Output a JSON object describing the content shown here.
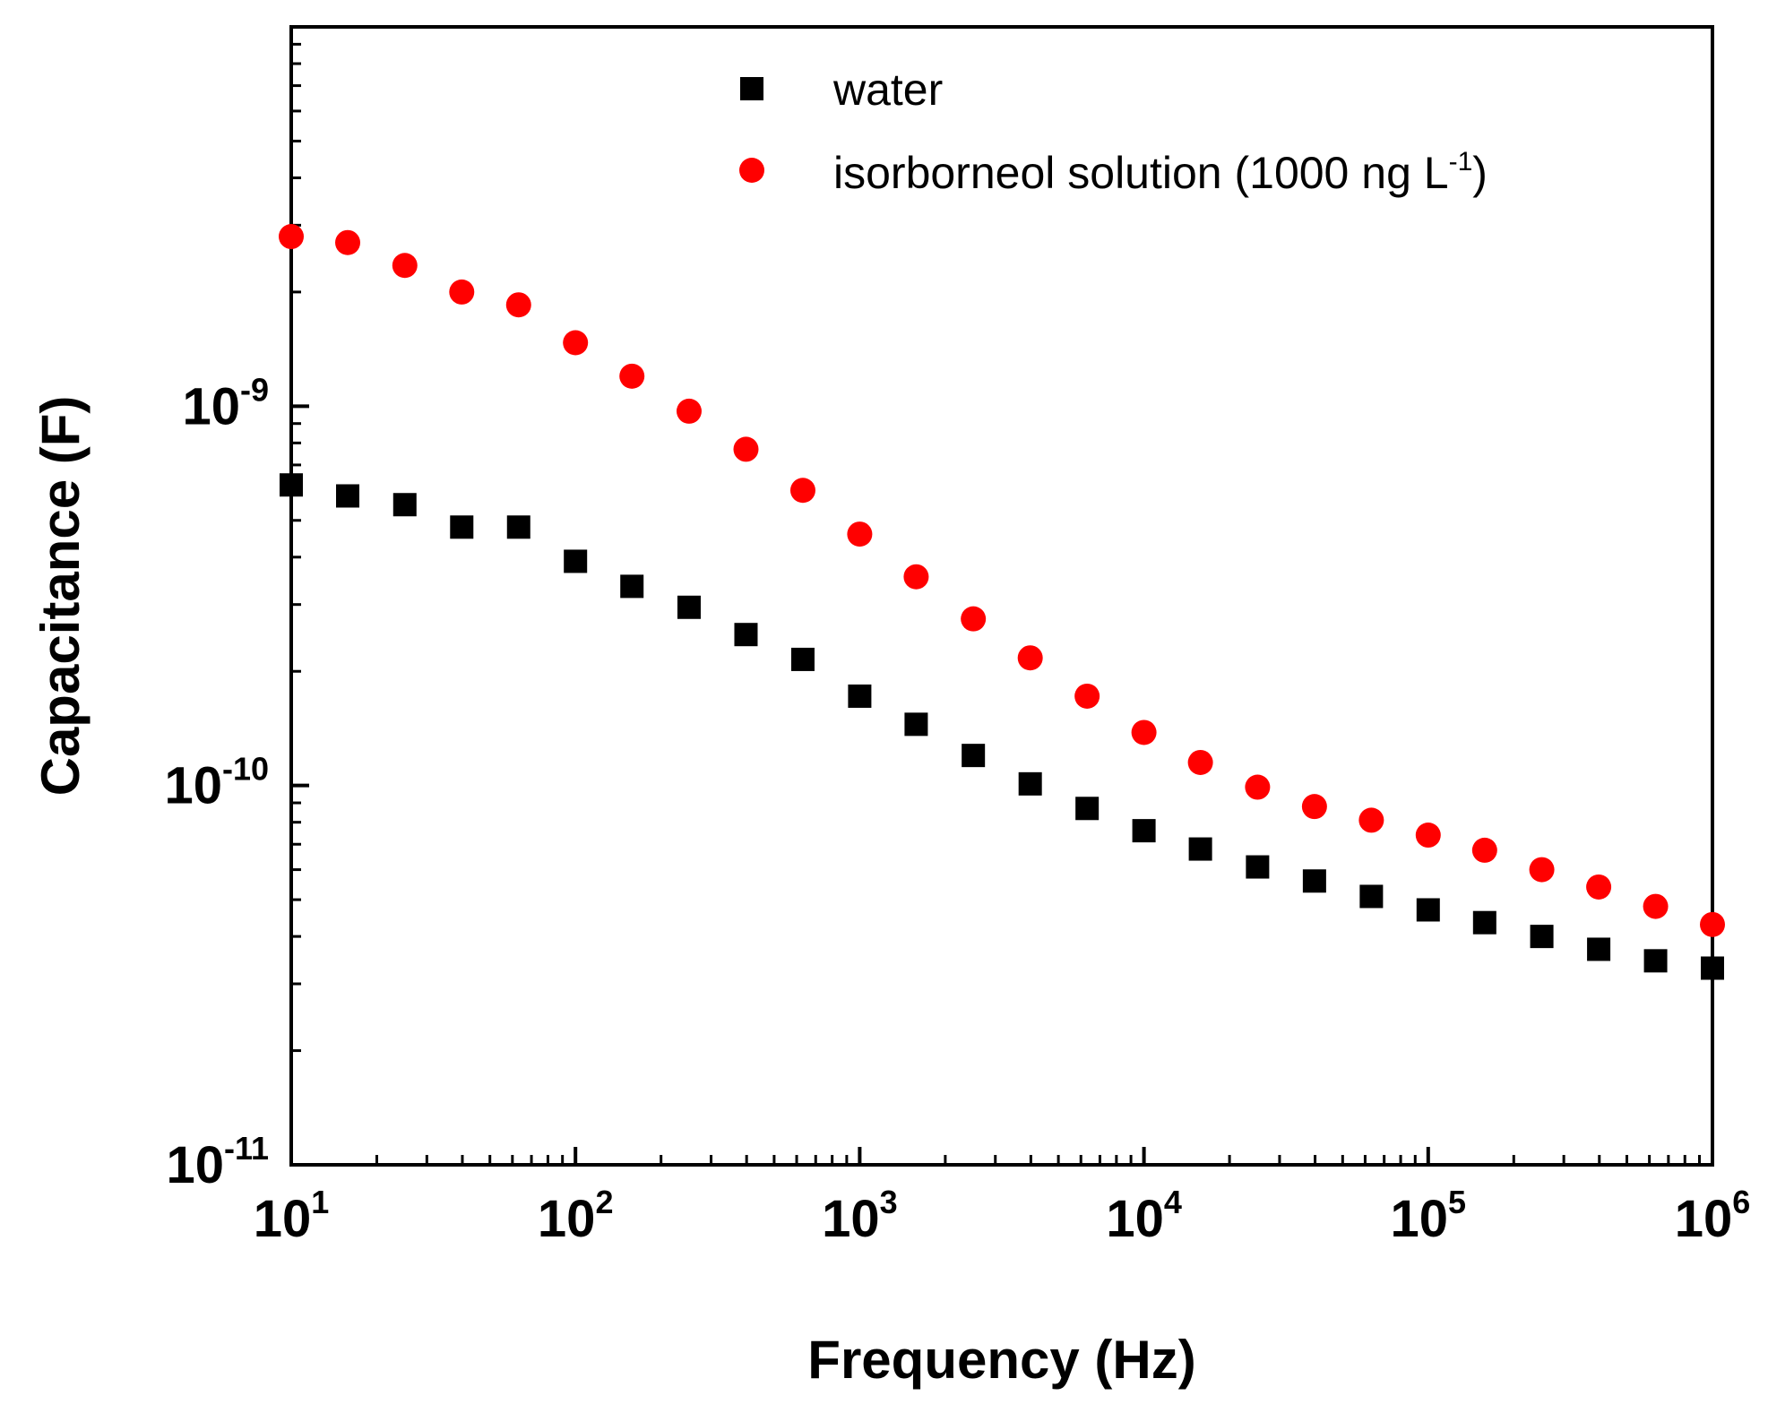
{
  "chart_data": {
    "type": "scatter",
    "xlabel": "Frequency (Hz)",
    "ylabel": "Capacitance (F)",
    "x_scale": "log",
    "y_scale": "log",
    "xlim": [
      10,
      1000000
    ],
    "ylim": [
      1e-11,
      1e-08
    ],
    "grid": false,
    "legend_position": "top-right",
    "x_ticks": [
      {
        "base": "10",
        "exp": "1",
        "value": 10
      },
      {
        "base": "10",
        "exp": "2",
        "value": 100
      },
      {
        "base": "10",
        "exp": "3",
        "value": 1000
      },
      {
        "base": "10",
        "exp": "4",
        "value": 10000
      },
      {
        "base": "10",
        "exp": "5",
        "value": 100000
      },
      {
        "base": "10",
        "exp": "6",
        "value": 1000000
      }
    ],
    "y_ticks": [
      {
        "base": "10",
        "exp": "-11",
        "value": 1e-11
      },
      {
        "base": "10",
        "exp": "-10",
        "value": 1e-10
      },
      {
        "base": "10",
        "exp": "-9",
        "value": 1e-09
      }
    ],
    "series": [
      {
        "name": "water",
        "marker": "square",
        "color": "#000000",
        "x": [
          10,
          15.8,
          25.1,
          39.8,
          63.1,
          100,
          158,
          251,
          398,
          631,
          1000,
          1580,
          2510,
          3980,
          6310,
          10000,
          15800,
          25100,
          39800,
          63100,
          100000,
          158000,
          251000,
          398000,
          631000,
          1000000
        ],
        "y": [
          6.2e-10,
          5.8e-10,
          5.5e-10,
          4.8e-10,
          4.8e-10,
          3.9e-10,
          3.35e-10,
          2.95e-10,
          2.5e-10,
          2.15e-10,
          1.72e-10,
          1.45e-10,
          1.2e-10,
          1.01e-10,
          8.7e-11,
          7.6e-11,
          6.8e-11,
          6.1e-11,
          5.6e-11,
          5.1e-11,
          4.7e-11,
          4.35e-11,
          4e-11,
          3.7e-11,
          3.45e-11,
          3.3e-11
        ]
      },
      {
        "name": "isorborneol solution (1000 ng L",
        "name_sup": "-1",
        "name_suffix": ")",
        "marker": "circle",
        "color": "#ff0000",
        "x": [
          10,
          15.8,
          25.1,
          39.8,
          63.1,
          100,
          158,
          251,
          398,
          631,
          1000,
          1580,
          2510,
          3980,
          6310,
          10000,
          15800,
          25100,
          39800,
          63100,
          100000,
          158000,
          251000,
          398000,
          631000,
          1000000
        ],
        "y": [
          2.8e-09,
          2.7e-09,
          2.35e-09,
          2e-09,
          1.85e-09,
          1.47e-09,
          1.2e-09,
          9.7e-10,
          7.7e-10,
          6e-10,
          4.6e-10,
          3.55e-10,
          2.75e-10,
          2.17e-10,
          1.72e-10,
          1.38e-10,
          1.15e-10,
          9.9e-11,
          8.8e-11,
          8.1e-11,
          7.4e-11,
          6.75e-11,
          6e-11,
          5.4e-11,
          4.8e-11,
          4.3e-11
        ]
      }
    ]
  }
}
